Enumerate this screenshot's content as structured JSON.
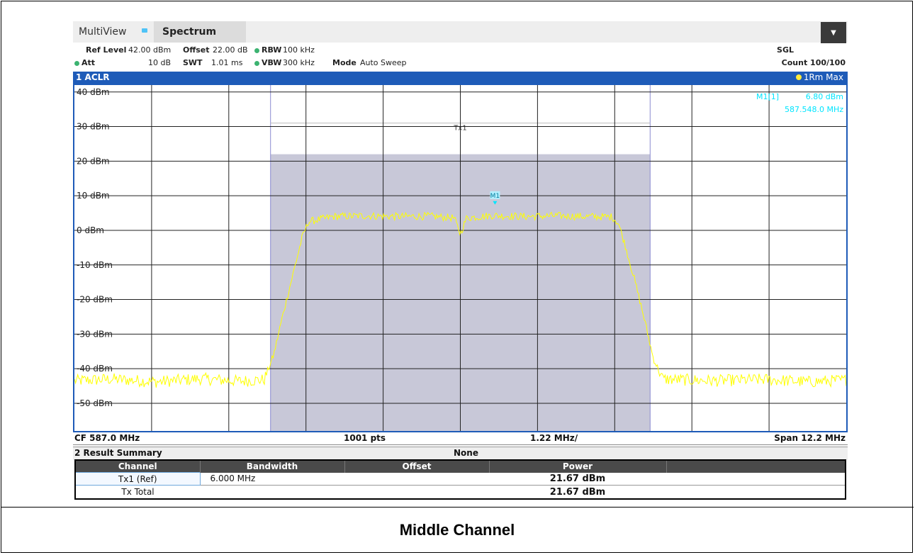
{
  "window": {
    "multiview_label": "MultiView",
    "spectrum_tab": "Spectrum",
    "menu_icon": "chevron-down"
  },
  "settings": {
    "ref_level_label": "Ref Level",
    "ref_level_value": "42.00 dBm",
    "offset_label": "Offset",
    "offset_value": "22.00 dB",
    "rbw_label": "RBW",
    "rbw_value": "100 kHz",
    "att_label": "Att",
    "att_value": "10 dB",
    "swt_label": "SWT",
    "swt_value": "1.01 ms",
    "vbw_label": "VBW",
    "vbw_value": "300 kHz",
    "mode_label": "Mode",
    "mode_value": "Auto Sweep",
    "sgl": "SGL",
    "count": "Count 100/100"
  },
  "diagram": {
    "title": "1 ACLR",
    "trace_info": "1Rm Max",
    "marker_label": "M1[1]",
    "marker_level": "6.80 dBm",
    "marker_freq": "587.548.0 MHz",
    "marker_tag": "M1",
    "channel_label": "Tx1",
    "cf": "CF 587.0 MHz",
    "pts": "1001 pts",
    "div": "1.22 MHz/",
    "span": "Span 12.2 MHz"
  },
  "chart_data": {
    "type": "line",
    "x_unit": "MHz",
    "y_unit": "dBm",
    "ylim": [
      -58,
      42
    ],
    "xlim": [
      580.9,
      593.1
    ],
    "y_ticks": [
      "40 dBm",
      "30 dBm",
      "20 dBm",
      "10 dBm",
      "0 dBm",
      "-10 dBm",
      "-20 dBm",
      "-30 dBm",
      "-40 dBm",
      "-50 dBm"
    ],
    "y_tick_values": [
      40,
      30,
      20,
      10,
      0,
      -10,
      -20,
      -30,
      -40,
      -50
    ],
    "channel_band": {
      "x": [
        584.0,
        590.0
      ],
      "level": 22
    },
    "channel_line": {
      "x": [
        584.0,
        590.0
      ],
      "level": 31
    },
    "marker": {
      "x": 587.548,
      "y": 6.8
    },
    "series": [
      {
        "color": "#ffff00",
        "x": [
          580.9,
          581.5,
          582.2,
          582.9,
          583.5,
          583.9,
          584.05,
          584.2,
          584.35,
          584.5,
          584.6,
          585.0,
          585.5,
          586.0,
          586.5,
          586.9,
          587.0,
          587.1,
          587.5,
          588.0,
          588.5,
          589.0,
          589.4,
          589.5,
          589.6,
          589.75,
          589.9,
          590.05,
          590.2,
          591.0,
          591.8,
          592.5,
          593.1
        ],
        "values": [
          -43.5,
          -43.0,
          -43.8,
          -42.9,
          -43.6,
          -43.2,
          -36.0,
          -24.0,
          -13.0,
          -2.0,
          2.5,
          4.0,
          4.2,
          4.0,
          4.1,
          3.6,
          -1.0,
          3.6,
          4.3,
          4.0,
          4.2,
          4.0,
          3.9,
          2.0,
          -4.0,
          -14.0,
          -25.0,
          -37.0,
          -43.0,
          -43.5,
          -43.1,
          -43.8,
          -43.3
        ]
      }
    ]
  },
  "result_summary": {
    "title": "2 Result Summary",
    "none_label": "None",
    "headers": [
      "Channel",
      "Bandwidth",
      "Offset",
      "Power",
      ""
    ],
    "rows": [
      {
        "channel": "Tx1 (Ref)",
        "bandwidth": "6.000 MHz",
        "offset": "",
        "power": "21.67 dBm"
      },
      {
        "channel": "Tx Total",
        "bandwidth": "",
        "offset": "",
        "power": "21.67 dBm"
      }
    ]
  },
  "caption": "Middle Channel"
}
